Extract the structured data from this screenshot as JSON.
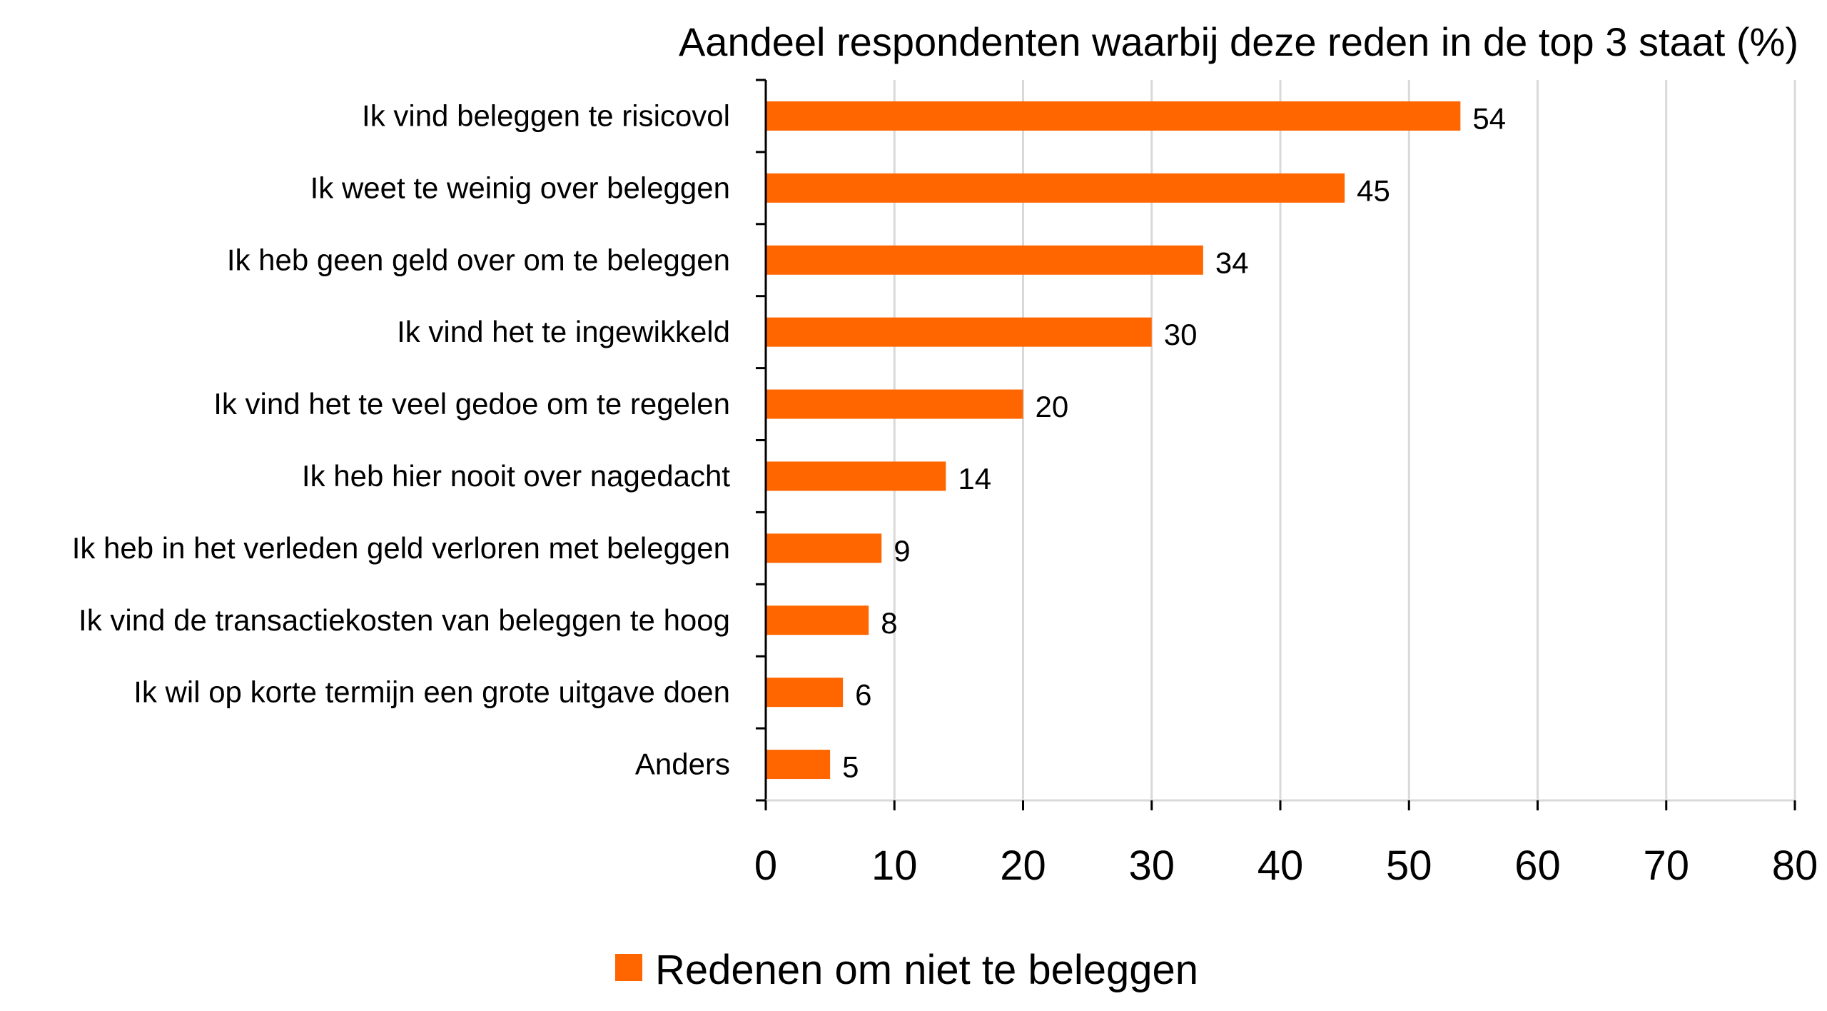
{
  "chart_data": {
    "type": "bar",
    "orientation": "horizontal",
    "title": "Aandeel respondenten waarbij deze reden in de top 3 staat (%)",
    "categories": [
      "Ik vind beleggen te risicovol",
      "Ik weet te weinig over beleggen",
      "Ik heb geen geld over om te beleggen",
      "Ik vind het te ingewikkeld",
      "Ik vind het te veel gedoe om te regelen",
      "Ik heb hier nooit over nagedacht",
      "Ik heb in het verleden geld verloren met beleggen",
      "Ik vind de transactiekosten van beleggen te hoog",
      "Ik wil op korte termijn een grote uitgave doen",
      "Anders"
    ],
    "series": [
      {
        "name": "Redenen om niet te beleggen",
        "color": "#ff6600",
        "values": [
          54,
          45,
          34,
          30,
          20,
          14,
          9,
          8,
          6,
          5
        ]
      }
    ],
    "xlim": [
      0,
      80
    ],
    "xticks": [
      "0",
      "10",
      "20",
      "30",
      "40",
      "50",
      "60",
      "70",
      "80"
    ],
    "grid": true,
    "legend_position": "bottom",
    "colors": {
      "bar": "#ff6600",
      "grid": "#d9d9d9",
      "axis": "#000000",
      "text": "#000000"
    }
  }
}
